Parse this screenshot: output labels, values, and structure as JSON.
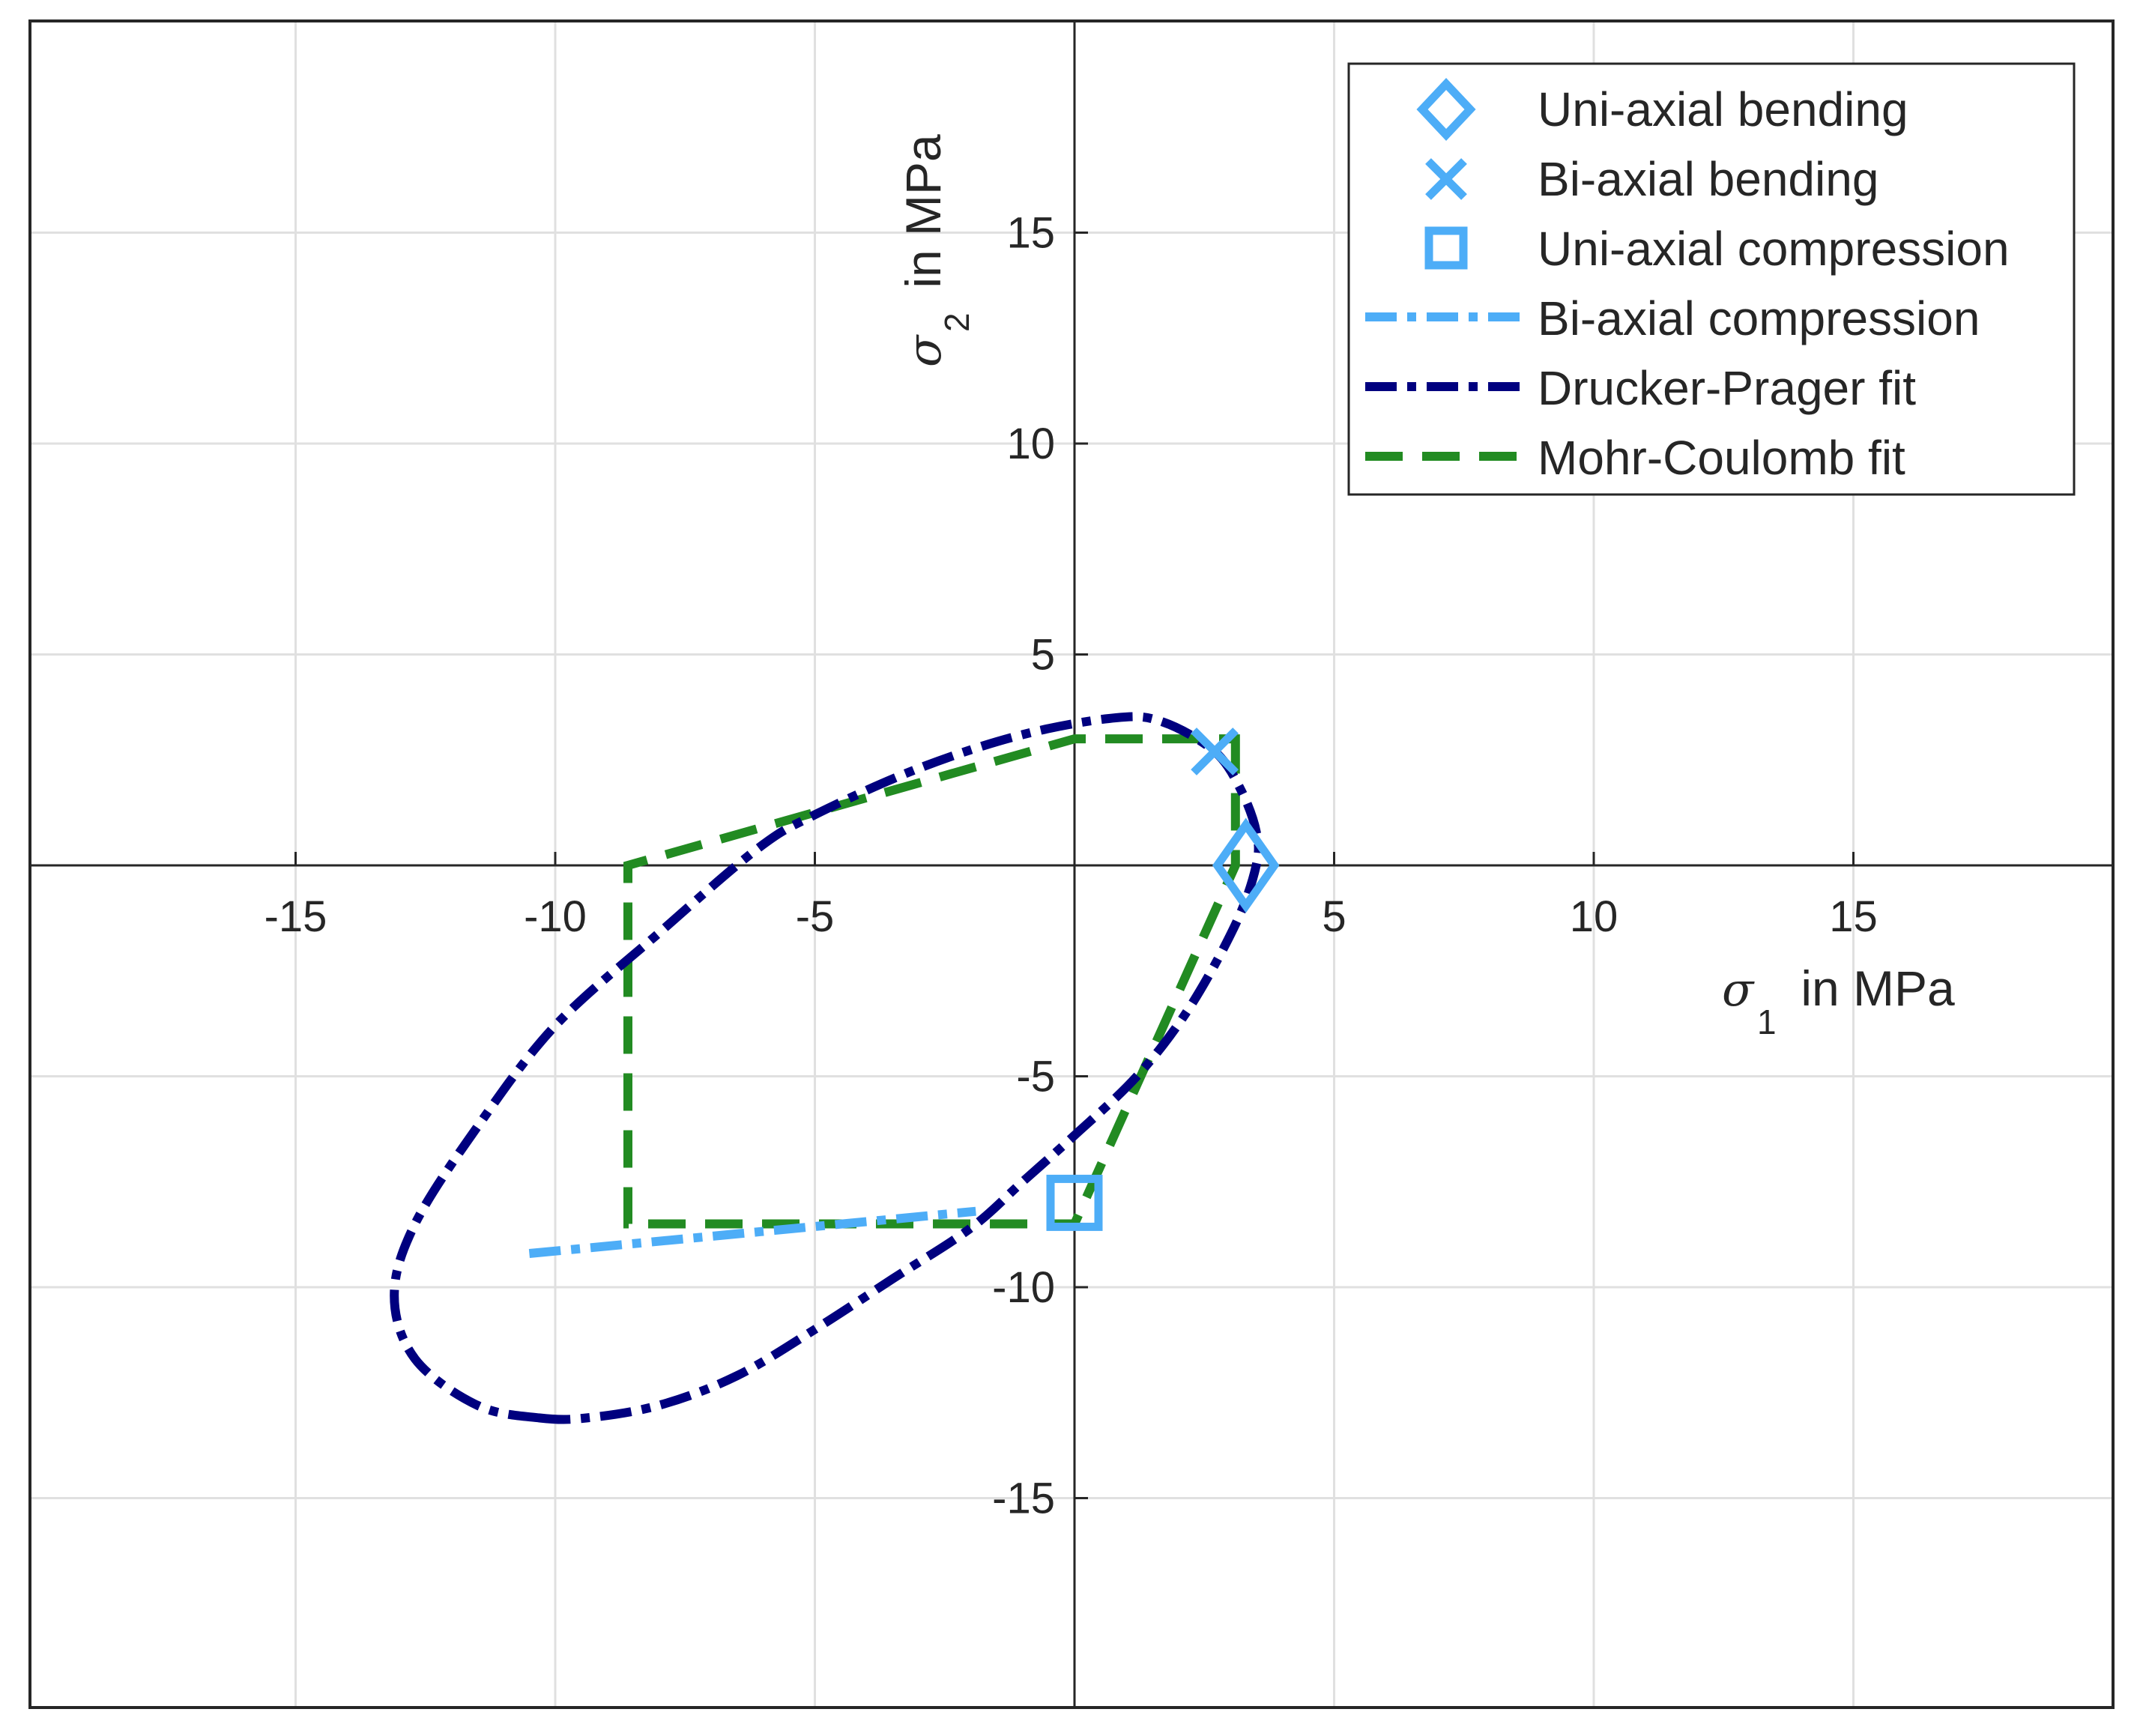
{
  "chart_data": {
    "type": "line",
    "xlabel": {
      "symbol": "σ",
      "subscript": "1",
      "text": " in MPa"
    },
    "ylabel": {
      "symbol": "σ",
      "subscript": "2",
      "text": " in MPa"
    },
    "xlim": [
      -20,
      20
    ],
    "ylim": [
      -20,
      20
    ],
    "xticks": [
      -15,
      -10,
      -5,
      5,
      10,
      15
    ],
    "yticks": [
      15,
      10,
      5,
      -5,
      -10,
      -15
    ],
    "grid": true,
    "legend_position": "top-right",
    "colors": {
      "light_blue": "#4dadf7",
      "navy": "#00007f",
      "green": "#228b22",
      "grid": "#e0e0e0",
      "axis": "#262626"
    },
    "series": [
      {
        "name": "Uni-axial bending",
        "kind": "marker",
        "marker": "diamond",
        "color": "#4dadf7",
        "points": [
          [
            3.3,
            0.0
          ]
        ]
      },
      {
        "name": "Bi-axial bending",
        "kind": "marker",
        "marker": "cross",
        "color": "#4dadf7",
        "points": [
          [
            2.7,
            2.7
          ]
        ]
      },
      {
        "name": "Uni-axial compression",
        "kind": "marker",
        "marker": "square",
        "color": "#4dadf7",
        "points": [
          [
            0.0,
            -8.0
          ]
        ]
      },
      {
        "name": "Bi-axial compression",
        "kind": "line",
        "style": "dashdot",
        "color": "#4dadf7",
        "points": [
          [
            -10.5,
            -9.2
          ],
          [
            -1.9,
            -8.2
          ]
        ]
      },
      {
        "name": "Drucker-Prager fit",
        "kind": "curve",
        "style": "dashdot",
        "color": "#00007f",
        "points": [
          [
            -10.3,
            -13.1
          ],
          [
            -11.5,
            -12.8
          ],
          [
            -12.7,
            -11.7
          ],
          [
            -13.1,
            -10.2
          ],
          [
            -12.7,
            -8.5
          ],
          [
            -11.5,
            -6.2
          ],
          [
            -10.0,
            -3.8
          ],
          [
            -8.0,
            -1.6
          ],
          [
            -6.1,
            0.4
          ],
          [
            -5.0,
            1.2
          ],
          [
            -3.0,
            2.3
          ],
          [
            -1.0,
            3.1
          ],
          [
            0.8,
            3.5
          ],
          [
            1.7,
            3.4
          ],
          [
            2.7,
            2.7
          ],
          [
            3.2,
            1.8
          ],
          [
            3.5,
            0.8
          ],
          [
            3.5,
            0.0
          ],
          [
            3.1,
            -1.4
          ],
          [
            2.2,
            -3.4
          ],
          [
            1.2,
            -5.0
          ],
          [
            0.0,
            -6.4
          ],
          [
            -1.0,
            -7.5
          ],
          [
            -2.0,
            -8.6
          ],
          [
            -3.5,
            -9.8
          ],
          [
            -5.0,
            -11.0
          ],
          [
            -6.5,
            -12.1
          ],
          [
            -8.0,
            -12.8
          ],
          [
            -9.4,
            -13.1
          ],
          [
            -10.3,
            -13.1
          ]
        ]
      },
      {
        "name": "Mohr-Coulomb fit",
        "kind": "polyline",
        "style": "dashed",
        "color": "#228b22",
        "points": [
          [
            3.1,
            2.5
          ],
          [
            3.1,
            3.0
          ],
          [
            0.0,
            3.0
          ],
          [
            -8.6,
            0.0
          ],
          [
            -8.6,
            -8.5
          ],
          [
            0.0,
            -8.5
          ],
          [
            3.1,
            0.0
          ],
          [
            3.1,
            2.5
          ]
        ]
      }
    ]
  }
}
